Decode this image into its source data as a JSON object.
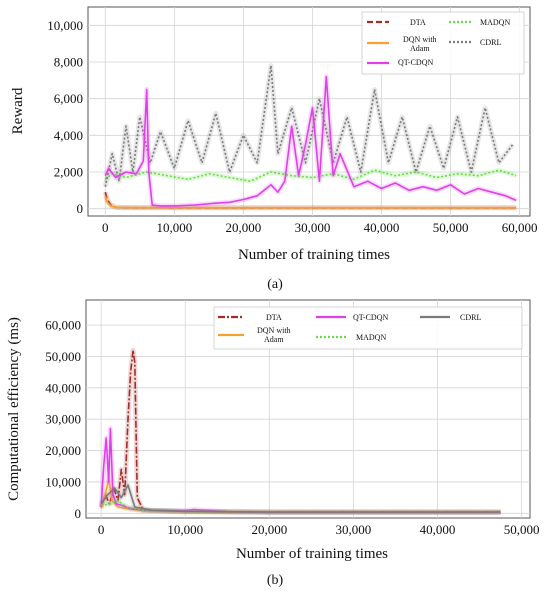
{
  "colors": {
    "DTA": "#a52a2a",
    "DQN with Adam": "#f5a030",
    "QT-CDQN": "#e040e8",
    "MADQN": "#66dd44",
    "CDRL": "#7a7a7a",
    "grid": "#d4d4d4",
    "legend_border": "#cccccc"
  },
  "chart_data": [
    {
      "type": "line",
      "panel_label": "(a)",
      "title": "",
      "xlabel": "Number of training times",
      "ylabel": "Reward",
      "xlim": [
        -2500,
        61500
      ],
      "ylim": [
        -400,
        11000
      ],
      "x_ticks": [
        0,
        10000,
        20000,
        30000,
        40000,
        50000,
        60000
      ],
      "x_tick_labels": [
        "0",
        "10,000",
        "20,000",
        "30,000",
        "40,000",
        "50,000",
        "60,000"
      ],
      "y_ticks": [
        0,
        2000,
        4000,
        6000,
        8000,
        10000
      ],
      "y_tick_labels": [
        "0",
        "2,000",
        "4,000",
        "6,000",
        "8,000",
        "10,000"
      ],
      "grid": true,
      "legend_position": "top-right",
      "series": [
        {
          "name": "DTA",
          "style": "dashed",
          "x": [
            0,
            300,
            800,
            1500,
            3000,
            10000,
            20000,
            30000,
            40000,
            50000,
            59500
          ],
          "y": [
            900,
            500,
            200,
            80,
            60,
            50,
            50,
            50,
            50,
            50,
            50
          ]
        },
        {
          "name": "DQN with Adam",
          "style": "solid",
          "x": [
            0,
            300,
            800,
            1500,
            3000,
            10000,
            20000,
            30000,
            40000,
            50000,
            59500
          ],
          "y": [
            700,
            350,
            150,
            80,
            60,
            55,
            55,
            55,
            55,
            55,
            55
          ]
        },
        {
          "name": "MADQN",
          "style": "dotted",
          "x": [
            0,
            1000,
            3000,
            6000,
            9000,
            12000,
            15000,
            18000,
            21000,
            24000,
            27000,
            30000,
            33000,
            36000,
            39000,
            42000,
            45000,
            48000,
            51000,
            54000,
            57000,
            59500
          ],
          "y": [
            1600,
            1900,
            1700,
            2000,
            1800,
            1600,
            1900,
            1700,
            1500,
            2000,
            1800,
            1700,
            1900,
            1600,
            2100,
            1800,
            2000,
            1700,
            1900,
            1800,
            2100,
            1800
          ]
        },
        {
          "name": "CDRL",
          "style": "dotted",
          "x": [
            0,
            1000,
            2000,
            3000,
            4000,
            5000,
            6500,
            8000,
            10000,
            12000,
            14000,
            16000,
            18000,
            20000,
            22000,
            24000,
            25000,
            27000,
            29000,
            31000,
            33000,
            35000,
            37000,
            39000,
            41000,
            43000,
            45000,
            47000,
            49000,
            51000,
            53000,
            55000,
            57000,
            59000
          ],
          "y": [
            1200,
            3000,
            1500,
            4500,
            2000,
            5000,
            2500,
            4200,
            2200,
            4800,
            2500,
            5200,
            2000,
            4000,
            2500,
            7800,
            3000,
            5500,
            2500,
            6000,
            2500,
            5000,
            2000,
            6500,
            2500,
            5000,
            2000,
            4500,
            2200,
            5000,
            2000,
            5500,
            2500,
            3500
          ]
        },
        {
          "name": "QT-CDQN",
          "style": "solid",
          "x": [
            0,
            500,
            1500,
            3000,
            4500,
            5500,
            6000,
            6300,
            6800,
            8000,
            10000,
            13000,
            16000,
            18000,
            20000,
            22000,
            24000,
            25000,
            26000,
            27000,
            28000,
            29000,
            30000,
            31000,
            32000,
            33000,
            34000,
            36000,
            38000,
            40000,
            42000,
            44000,
            46000,
            48000,
            50000,
            52000,
            54000,
            56000,
            58000,
            59500
          ],
          "y": [
            1800,
            2200,
            1700,
            2000,
            1900,
            2600,
            6500,
            2000,
            200,
            150,
            150,
            200,
            300,
            350,
            500,
            700,
            1300,
            900,
            1500,
            4500,
            1800,
            3500,
            5500,
            1500,
            7200,
            1800,
            3000,
            1200,
            1500,
            1100,
            1400,
            1000,
            1200,
            1000,
            1300,
            800,
            1100,
            900,
            700,
            450
          ]
        }
      ]
    },
    {
      "type": "line",
      "panel_label": "(b)",
      "title": "",
      "xlabel": "Number of training times",
      "ylabel": "Computational efficiency (ms)",
      "xlim": [
        -1800,
        51000
      ],
      "ylim": [
        -1500,
        68000
      ],
      "x_ticks": [
        0,
        10000,
        20000,
        30000,
        40000,
        50000
      ],
      "x_tick_labels": [
        "0",
        "10,000",
        "20,000",
        "30,000",
        "40,000",
        "50,000"
      ],
      "y_ticks": [
        0,
        10000,
        20000,
        30000,
        40000,
        50000,
        60000
      ],
      "y_tick_labels": [
        "0",
        "10,000",
        "20,000",
        "30,000",
        "40,000",
        "50,000",
        "60,000"
      ],
      "grid": true,
      "legend_position": "top-right",
      "series": [
        {
          "name": "DTA",
          "style": "dashdot",
          "x": [
            0,
            500,
            1000,
            1500,
            2000,
            2400,
            2800,
            3200,
            3500,
            3800,
            4000,
            4300,
            5000,
            10000,
            20000,
            30000,
            40000,
            47500
          ],
          "y": [
            2000,
            6000,
            3000,
            8000,
            4000,
            14000,
            6000,
            30000,
            45000,
            52000,
            48000,
            5000,
            1000,
            500,
            400,
            400,
            400,
            400
          ]
        },
        {
          "name": "DQN with Adam",
          "style": "solid",
          "x": [
            0,
            500,
            900,
            1300,
            2000,
            3000,
            5000,
            10000,
            20000,
            30000,
            40000,
            47500
          ],
          "y": [
            1500,
            6000,
            11000,
            4000,
            2000,
            1500,
            800,
            500,
            300,
            300,
            300,
            300
          ]
        },
        {
          "name": "QT-CDQN",
          "style": "solid",
          "x": [
            0,
            300,
            600,
            900,
            1100,
            1400,
            1800,
            2500,
            3500,
            5000,
            10000,
            11000,
            15000,
            20000,
            30000,
            40000,
            47500
          ],
          "y": [
            2000,
            15000,
            24000,
            10000,
            27000,
            6000,
            3000,
            2500,
            1500,
            1000,
            800,
            1200,
            500,
            300,
            300,
            300,
            300
          ]
        },
        {
          "name": "MADQN",
          "style": "dotted",
          "x": [
            0,
            1000,
            2000,
            3000,
            5000,
            10000,
            20000,
            30000,
            40000,
            47500
          ],
          "y": [
            2500,
            3000,
            4000,
            2000,
            1000,
            600,
            400,
            400,
            400,
            400
          ]
        },
        {
          "name": "CDRL",
          "style": "solid",
          "x": [
            0,
            800,
            1600,
            2400,
            3200,
            4000,
            6000,
            10000,
            20000,
            30000,
            40000,
            47500
          ],
          "y": [
            3000,
            6000,
            8000,
            5000,
            9000,
            2000,
            1000,
            600,
            400,
            400,
            400,
            400
          ]
        }
      ]
    }
  ]
}
